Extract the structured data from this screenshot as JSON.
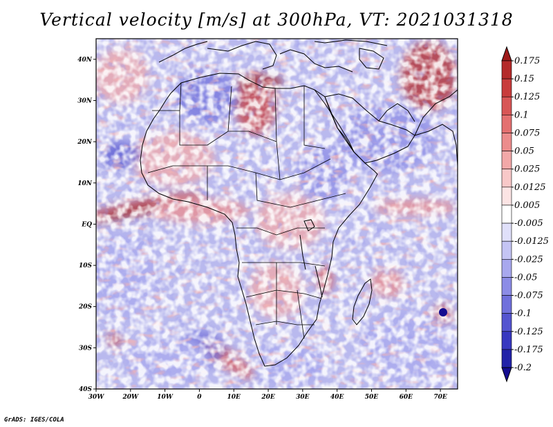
{
  "title": "Vertical velocity [m/s] at 300hPa, VT: 2021031318",
  "credit": "GrADS: IGES/COLA",
  "map": {
    "lon_range": [
      -30,
      75
    ],
    "lat_range": [
      -40,
      45
    ],
    "lat_ticks": [
      {
        "value": 40,
        "label": "40N"
      },
      {
        "value": 30,
        "label": "30N"
      },
      {
        "value": 20,
        "label": "20N"
      },
      {
        "value": 10,
        "label": "10N"
      },
      {
        "value": 0,
        "label": "EQ"
      },
      {
        "value": -10,
        "label": "10S"
      },
      {
        "value": -20,
        "label": "20S"
      },
      {
        "value": -30,
        "label": "30S"
      },
      {
        "value": -40,
        "label": "40S"
      }
    ],
    "lon_ticks": [
      {
        "value": -30,
        "label": "30W"
      },
      {
        "value": -20,
        "label": "20W"
      },
      {
        "value": -10,
        "label": "10W"
      },
      {
        "value": 0,
        "label": "0"
      },
      {
        "value": 10,
        "label": "10E"
      },
      {
        "value": 20,
        "label": "20E"
      },
      {
        "value": 30,
        "label": "30E"
      },
      {
        "value": 40,
        "label": "40E"
      },
      {
        "value": 50,
        "label": "50E"
      },
      {
        "value": 60,
        "label": "60E"
      },
      {
        "value": 70,
        "label": "70E"
      }
    ]
  },
  "colorbar": {
    "labels": [
      "0.175",
      "0.15",
      "0.125",
      "0.1",
      "0.075",
      "0.05",
      "0.025",
      "0.0125",
      "0.005",
      "-0.005",
      "-0.0125",
      "-0.025",
      "-0.05",
      "-0.075",
      "-0.1",
      "-0.125",
      "-0.175",
      "-0.2"
    ],
    "colors": [
      "#9e1a1a",
      "#b42a2a",
      "#c83c3c",
      "#d85656",
      "#e47070",
      "#ec8c8c",
      "#f2a8a8",
      "#f8c8c8",
      "#fce4e4",
      "#ffffff",
      "#e0e0fa",
      "#c4c4f4",
      "#a8a8ee",
      "#8c8ce6",
      "#7070dc",
      "#5454d0",
      "#3838c0",
      "#2222a8",
      "#140c90"
    ]
  },
  "colors": {
    "background": "#ffffff",
    "ocean_base": "#b9b9ee",
    "coastline": "#000000"
  }
}
